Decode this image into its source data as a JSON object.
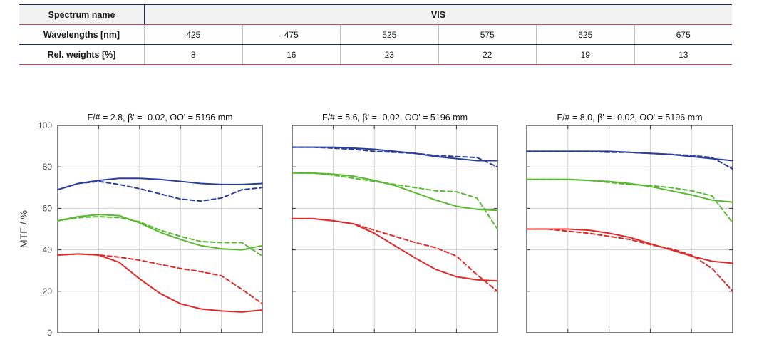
{
  "table": {
    "header_name": "Spectrum name",
    "header_value": "VIS",
    "wavelengths_label": "Wavelengths [nm]",
    "wavelengths": [
      "425",
      "475",
      "525",
      "575",
      "625",
      "675"
    ],
    "weights_label": "Rel. weights [%]",
    "weights": [
      "8",
      "16",
      "23",
      "22",
      "19",
      "13"
    ]
  },
  "chart_data": [
    {
      "type": "line",
      "title": "F/# = 2.8, β' = -0.02, OO' = 5196 mm",
      "ylabel": "MTF / %",
      "ylim": [
        0,
        100
      ],
      "yticks": [
        "0",
        "20",
        "40",
        "60",
        "80",
        "100"
      ],
      "xlim": [
        0,
        1
      ],
      "grid": true,
      "series": [
        {
          "color": "#2b3f99",
          "dash": false,
          "x": [
            0,
            0.1,
            0.2,
            0.3,
            0.4,
            0.5,
            0.6,
            0.7,
            0.8,
            0.9,
            1.0
          ],
          "y": [
            69,
            72,
            73.5,
            74.5,
            74.5,
            74,
            73,
            72,
            71.5,
            71.5,
            72
          ]
        },
        {
          "color": "#2b3f99",
          "dash": true,
          "x": [
            0,
            0.1,
            0.2,
            0.3,
            0.4,
            0.5,
            0.6,
            0.7,
            0.8,
            0.9,
            1.0
          ],
          "y": [
            69,
            72,
            73,
            71.5,
            69.5,
            67,
            64.5,
            63.5,
            65,
            69,
            70
          ]
        },
        {
          "color": "#5bb833",
          "dash": false,
          "x": [
            0,
            0.1,
            0.2,
            0.3,
            0.4,
            0.5,
            0.6,
            0.7,
            0.8,
            0.9,
            1.0
          ],
          "y": [
            54,
            56,
            57,
            56.5,
            53,
            48.5,
            45,
            42,
            40.5,
            40,
            42
          ]
        },
        {
          "color": "#5bb833",
          "dash": true,
          "x": [
            0,
            0.1,
            0.2,
            0.3,
            0.4,
            0.5,
            0.6,
            0.7,
            0.8,
            0.9,
            1.0
          ],
          "y": [
            54,
            55.5,
            56,
            55.5,
            53.5,
            49.5,
            46.5,
            44,
            43.5,
            43.5,
            37
          ]
        },
        {
          "color": "#e02a2a",
          "dash": false,
          "x": [
            0,
            0.1,
            0.2,
            0.3,
            0.4,
            0.5,
            0.6,
            0.7,
            0.8,
            0.9,
            1.0
          ],
          "y": [
            37.5,
            38,
            37.5,
            34,
            26,
            19,
            14,
            11.5,
            10.5,
            10,
            11
          ]
        },
        {
          "color": "#e02a2a",
          "dash": true,
          "x": [
            0,
            0.1,
            0.2,
            0.3,
            0.4,
            0.5,
            0.6,
            0.7,
            0.8,
            0.9,
            1.0
          ],
          "y": [
            37.5,
            38,
            37.5,
            36.5,
            35,
            33,
            31,
            29.5,
            27.5,
            21,
            14
          ]
        }
      ]
    },
    {
      "type": "line",
      "title": "F/# = 5.6, β' = -0.02, OO' = 5196 mm",
      "ylim": [
        0,
        100
      ],
      "xlim": [
        0,
        1
      ],
      "grid": true,
      "series": [
        {
          "color": "#2b3f99",
          "dash": false,
          "x": [
            0,
            0.1,
            0.2,
            0.3,
            0.4,
            0.5,
            0.6,
            0.7,
            0.8,
            0.9,
            1.0
          ],
          "y": [
            89.5,
            89.5,
            89.5,
            89,
            88.5,
            87.5,
            86.5,
            85,
            84,
            83,
            83
          ]
        },
        {
          "color": "#2b3f99",
          "dash": true,
          "x": [
            0,
            0.1,
            0.2,
            0.3,
            0.4,
            0.5,
            0.6,
            0.7,
            0.8,
            0.9,
            1.0
          ],
          "y": [
            89.5,
            89.5,
            89,
            88.5,
            87.5,
            87,
            86.5,
            85.5,
            85,
            84.5,
            80
          ]
        },
        {
          "color": "#5bb833",
          "dash": false,
          "x": [
            0,
            0.1,
            0.2,
            0.3,
            0.4,
            0.5,
            0.6,
            0.7,
            0.8,
            0.9,
            1.0
          ],
          "y": [
            77,
            77,
            76.5,
            75.5,
            73.5,
            71,
            67.5,
            64,
            61,
            59.5,
            59
          ]
        },
        {
          "color": "#5bb833",
          "dash": true,
          "x": [
            0,
            0.1,
            0.2,
            0.3,
            0.4,
            0.5,
            0.6,
            0.7,
            0.8,
            0.9,
            1.0
          ],
          "y": [
            77,
            77,
            76,
            74.5,
            73,
            71.5,
            70,
            68.5,
            68,
            65,
            50
          ]
        },
        {
          "color": "#e02a2a",
          "dash": false,
          "x": [
            0,
            0.1,
            0.2,
            0.3,
            0.4,
            0.5,
            0.6,
            0.7,
            0.8,
            0.9,
            1.0
          ],
          "y": [
            55,
            55,
            54,
            52.5,
            48,
            42,
            36,
            30.5,
            27,
            25.5,
            25
          ]
        },
        {
          "color": "#e02a2a",
          "dash": true,
          "x": [
            0,
            0.1,
            0.2,
            0.3,
            0.4,
            0.5,
            0.6,
            0.7,
            0.8,
            0.9,
            1.0
          ],
          "y": [
            55,
            55,
            54,
            52.5,
            49.5,
            46.5,
            43.5,
            41,
            37,
            28,
            20
          ]
        }
      ]
    },
    {
      "type": "line",
      "title": "F/# = 8.0, β' = -0.02, OO' = 5196 mm",
      "ylim": [
        0,
        100
      ],
      "xlim": [
        0,
        1
      ],
      "grid": true,
      "series": [
        {
          "color": "#2b3f99",
          "dash": false,
          "x": [
            0,
            0.1,
            0.2,
            0.3,
            0.4,
            0.5,
            0.6,
            0.7,
            0.8,
            0.9,
            1.0
          ],
          "y": [
            87.5,
            87.5,
            87.5,
            87.5,
            87.5,
            87,
            86.5,
            86,
            85,
            84,
            83
          ]
        },
        {
          "color": "#2b3f99",
          "dash": true,
          "x": [
            0,
            0.1,
            0.2,
            0.3,
            0.4,
            0.5,
            0.6,
            0.7,
            0.8,
            0.9,
            1.0
          ],
          "y": [
            87.5,
            87.5,
            87.5,
            87.5,
            87,
            87,
            86.5,
            86,
            85.5,
            84.5,
            79
          ]
        },
        {
          "color": "#5bb833",
          "dash": false,
          "x": [
            0,
            0.1,
            0.2,
            0.3,
            0.4,
            0.5,
            0.6,
            0.7,
            0.8,
            0.9,
            1.0
          ],
          "y": [
            74,
            74,
            74,
            73.5,
            73,
            72,
            70.5,
            68.5,
            66.5,
            64,
            63
          ]
        },
        {
          "color": "#5bb833",
          "dash": true,
          "x": [
            0,
            0.1,
            0.2,
            0.3,
            0.4,
            0.5,
            0.6,
            0.7,
            0.8,
            0.9,
            1.0
          ],
          "y": [
            74,
            74,
            74,
            73.5,
            72.5,
            71.5,
            71,
            70,
            68.5,
            66,
            53
          ]
        },
        {
          "color": "#e02a2a",
          "dash": false,
          "x": [
            0,
            0.1,
            0.2,
            0.3,
            0.4,
            0.5,
            0.6,
            0.7,
            0.8,
            0.9,
            1.0
          ],
          "y": [
            50,
            50,
            50,
            49.5,
            48,
            46,
            43,
            40,
            37,
            34.5,
            33.5
          ]
        },
        {
          "color": "#e02a2a",
          "dash": true,
          "x": [
            0,
            0.1,
            0.2,
            0.3,
            0.4,
            0.5,
            0.6,
            0.7,
            0.8,
            0.9,
            1.0
          ],
          "y": [
            50,
            50,
            49,
            48,
            46.5,
            45,
            42.5,
            40.5,
            37.5,
            31,
            20
          ]
        }
      ]
    }
  ]
}
